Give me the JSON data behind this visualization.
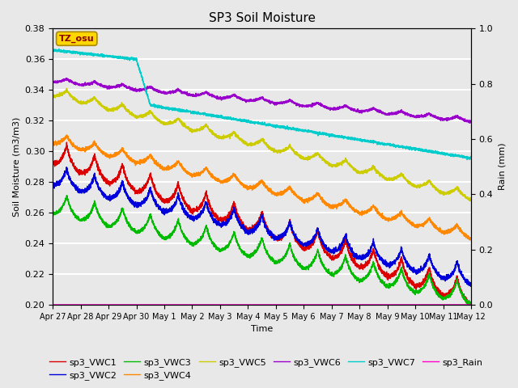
{
  "title": "SP3 Soil Moisture",
  "xlabel": "Time",
  "ylabel_left": "Soil Moisture (m3/m3)",
  "ylabel_right": "Rain (mm)",
  "ylim_left": [
    0.2,
    0.38
  ],
  "ylim_right": [
    0.0,
    1.0
  ],
  "x_tick_labels": [
    "Apr 27",
    "Apr 28",
    "Apr 29",
    "Apr 30",
    "May 1",
    "May 2",
    "May 3",
    "May 4",
    "May 5",
    "May 6",
    "May 7",
    "May 8",
    "May 9",
    "May 10",
    "May 11",
    "May 12"
  ],
  "x_tick_positions": [
    0,
    1,
    2,
    3,
    4,
    5,
    6,
    7,
    8,
    9,
    10,
    11,
    12,
    13,
    14,
    15
  ],
  "annotation_text": "TZ_osu",
  "annotation_box_color": "#FFD700",
  "annotation_text_color": "#8B0000",
  "plot_bg_color": "#E8E8E8",
  "fig_bg_color": "#E8E8E8",
  "grid_color": "#FFFFFF",
  "colors": {
    "sp3_VWC1": "#DD0000",
    "sp3_VWC2": "#0000DD",
    "sp3_VWC3": "#00BB00",
    "sp3_VWC4": "#FF8800",
    "sp3_VWC5": "#CCCC00",
    "sp3_VWC6": "#9900CC",
    "sp3_VWC7": "#00CCCC",
    "sp3_Rain": "#FF00CC"
  }
}
